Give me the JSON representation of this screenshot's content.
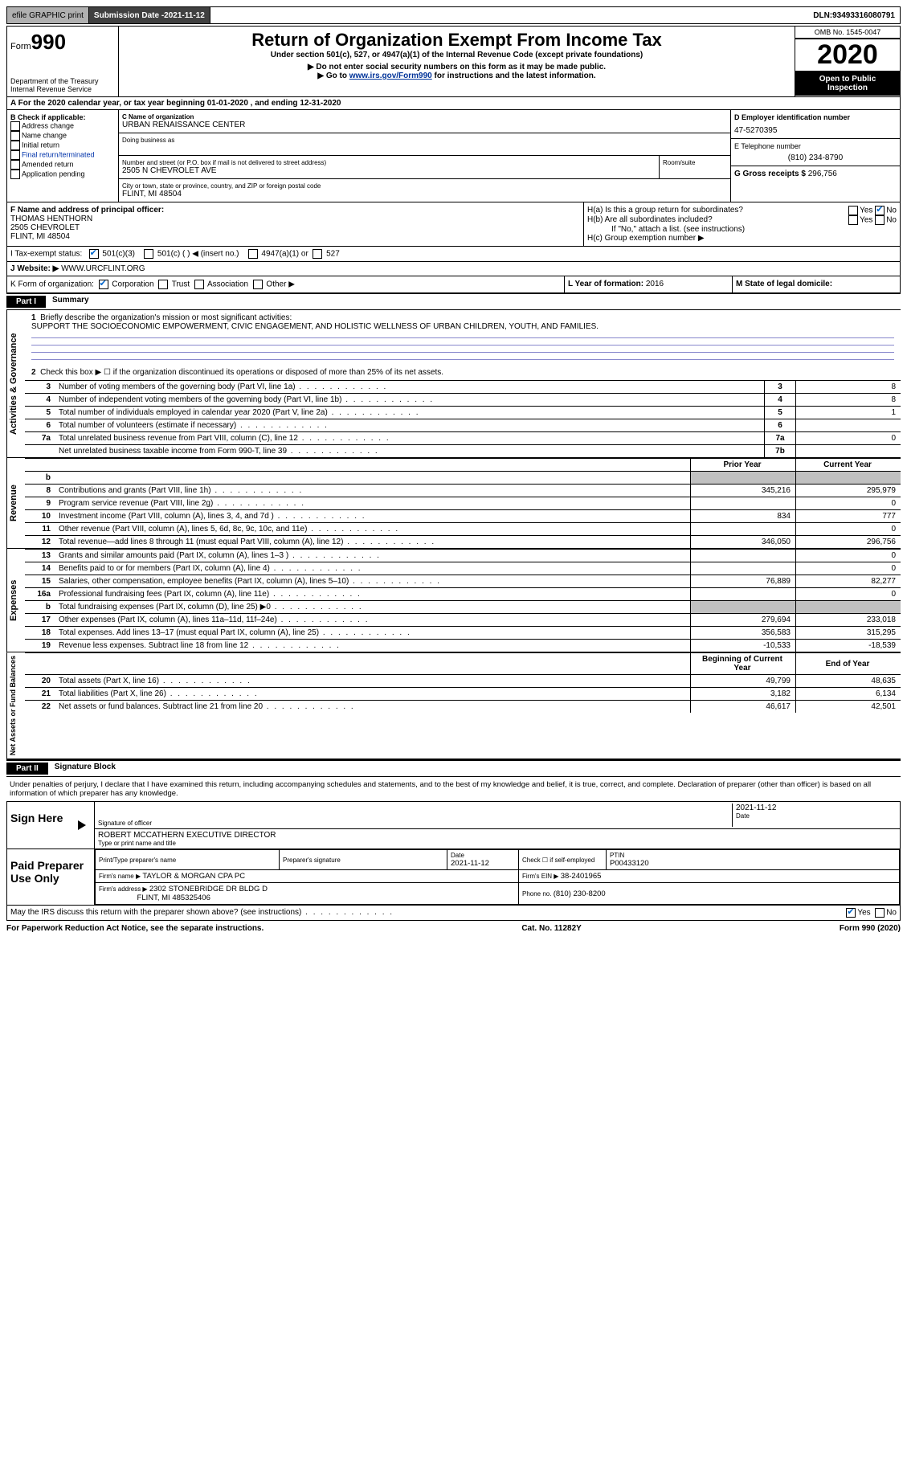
{
  "topbar": {
    "efile": "efile GRAPHIC print",
    "submission_label": "Submission Date - ",
    "submission_date": "2021-11-12",
    "dln_label": "DLN: ",
    "dln": "93493316080791"
  },
  "header": {
    "form_word": "Form",
    "form_number": "990",
    "dept": "Department of the Treasury\nInternal Revenue Service",
    "title": "Return of Organization Exempt From Income Tax",
    "subtitle": "Under section 501(c), 527, or 4947(a)(1) of the Internal Revenue Code (except private foundations)",
    "note1": "▶ Do not enter social security numbers on this form as it may be made public.",
    "note2_pre": "▶ Go to ",
    "note2_link": "www.irs.gov/Form990",
    "note2_post": " for instructions and the latest information.",
    "omb": "OMB No. 1545-0047",
    "year": "2020",
    "inspection": "Open to Public Inspection"
  },
  "period": {
    "text": "A For the 2020 calendar year, or tax year beginning 01-01-2020   , and ending 12-31-2020"
  },
  "section_b": {
    "header": "B Check if applicable:",
    "items": [
      "Address change",
      "Name change",
      "Initial return",
      "Final return/terminated",
      "Amended return",
      "Application pending"
    ]
  },
  "section_c": {
    "name_label": "C Name of organization",
    "name": "URBAN RENAISSANCE CENTER",
    "dba_label": "Doing business as",
    "addr_label": "Number and street (or P.O. box if mail is not delivered to street address)",
    "room_label": "Room/suite",
    "addr": "2505 N CHEVROLET AVE",
    "city_label": "City or town, state or province, country, and ZIP or foreign postal code",
    "city": "FLINT, MI  48504"
  },
  "section_d": {
    "ein_label": "D Employer identification number",
    "ein": "47-5270395",
    "phone_label": "E Telephone number",
    "phone": "(810) 234-8790",
    "gross_label": "G Gross receipts $ ",
    "gross": "296,756"
  },
  "section_f": {
    "label": "F Name and address of principal officer:",
    "name": "THOMAS HENTHORN",
    "addr1": "2505 CHEVROLET",
    "addr2": "FLINT, MI  48504"
  },
  "section_h": {
    "ha": "H(a)  Is this a group return for subordinates?",
    "hb": "H(b)  Are all subordinates included?",
    "hb_note": "If \"No,\" attach a list. (see instructions)",
    "hc": "H(c)  Group exemption number ▶",
    "yes": "Yes",
    "no": "No"
  },
  "section_i": {
    "label": "I   Tax-exempt status:",
    "opts": [
      "501(c)(3)",
      "501(c) (  ) ◀ (insert no.)",
      "4947(a)(1) or",
      "527"
    ]
  },
  "section_j": {
    "label": "J   Website: ▶",
    "value": "WWW.URCFLINT.ORG"
  },
  "section_k": {
    "label": "K Form of organization:",
    "opts": [
      "Corporation",
      "Trust",
      "Association",
      "Other ▶"
    ]
  },
  "section_l": {
    "label": "L Year of formation: ",
    "value": "2016"
  },
  "section_m": {
    "label": "M State of legal domicile:",
    "value": ""
  },
  "part1": {
    "tab": "Part I",
    "title": "Summary",
    "q1_label": "1",
    "q1": "Briefly describe the organization's mission or most significant activities:",
    "mission": "SUPPORT THE SOCIOECONOMIC EMPOWERMENT, CIVIC ENGAGEMENT, AND HOLISTIC WELLNESS OF URBAN CHILDREN, YOUTH, AND FAMILIES.",
    "q2_label": "2",
    "q2": "Check this box ▶ ☐  if the organization discontinued its operations or disposed of more than 25% of its net assets."
  },
  "governance_lines": [
    {
      "no": "3",
      "text": "Number of voting members of the governing body (Part VI, line 1a)",
      "box": "3",
      "val": "8"
    },
    {
      "no": "4",
      "text": "Number of independent voting members of the governing body (Part VI, line 1b)",
      "box": "4",
      "val": "8"
    },
    {
      "no": "5",
      "text": "Total number of individuals employed in calendar year 2020 (Part V, line 2a)",
      "box": "5",
      "val": "1"
    },
    {
      "no": "6",
      "text": "Total number of volunteers (estimate if necessary)",
      "box": "6",
      "val": ""
    },
    {
      "no": "7a",
      "text": "Total unrelated business revenue from Part VIII, column (C), line 12",
      "box": "7a",
      "val": "0"
    },
    {
      "no": "",
      "text": "Net unrelated business taxable income from Form 990-T, line 39",
      "box": "7b",
      "val": ""
    }
  ],
  "col_headers": {
    "prior": "Prior Year",
    "current": "Current Year"
  },
  "revenue_lines": [
    {
      "no": "b",
      "text": "",
      "py": "",
      "cy": "",
      "grey": true
    },
    {
      "no": "8",
      "text": "Contributions and grants (Part VIII, line 1h)",
      "py": "345,216",
      "cy": "295,979"
    },
    {
      "no": "9",
      "text": "Program service revenue (Part VIII, line 2g)",
      "py": "",
      "cy": "0"
    },
    {
      "no": "10",
      "text": "Investment income (Part VIII, column (A), lines 3, 4, and 7d )",
      "py": "834",
      "cy": "777"
    },
    {
      "no": "11",
      "text": "Other revenue (Part VIII, column (A), lines 5, 6d, 8c, 9c, 10c, and 11e)",
      "py": "",
      "cy": "0"
    },
    {
      "no": "12",
      "text": "Total revenue—add lines 8 through 11 (must equal Part VIII, column (A), line 12)",
      "py": "346,050",
      "cy": "296,756"
    }
  ],
  "expense_lines": [
    {
      "no": "13",
      "text": "Grants and similar amounts paid (Part IX, column (A), lines 1–3 )",
      "py": "",
      "cy": "0"
    },
    {
      "no": "14",
      "text": "Benefits paid to or for members (Part IX, column (A), line 4)",
      "py": "",
      "cy": "0"
    },
    {
      "no": "15",
      "text": "Salaries, other compensation, employee benefits (Part IX, column (A), lines 5–10)",
      "py": "76,889",
      "cy": "82,277"
    },
    {
      "no": "16a",
      "text": "Professional fundraising fees (Part IX, column (A), line 11e)",
      "py": "",
      "cy": "0"
    },
    {
      "no": "b",
      "text": "Total fundraising expenses (Part IX, column (D), line 25) ▶0",
      "py": "",
      "cy": "",
      "grey": true
    },
    {
      "no": "17",
      "text": "Other expenses (Part IX, column (A), lines 11a–11d, 11f–24e)",
      "py": "279,694",
      "cy": "233,018"
    },
    {
      "no": "18",
      "text": "Total expenses. Add lines 13–17 (must equal Part IX, column (A), line 25)",
      "py": "356,583",
      "cy": "315,295"
    },
    {
      "no": "19",
      "text": "Revenue less expenses. Subtract line 18 from line 12",
      "py": "-10,533",
      "cy": "-18,539"
    }
  ],
  "net_headers": {
    "begin": "Beginning of Current Year",
    "end": "End of Year"
  },
  "net_lines": [
    {
      "no": "20",
      "text": "Total assets (Part X, line 16)",
      "py": "49,799",
      "cy": "48,635"
    },
    {
      "no": "21",
      "text": "Total liabilities (Part X, line 26)",
      "py": "3,182",
      "cy": "6,134"
    },
    {
      "no": "22",
      "text": "Net assets or fund balances. Subtract line 21 from line 20",
      "py": "46,617",
      "cy": "42,501"
    }
  ],
  "part2": {
    "tab": "Part II",
    "title": "Signature Block",
    "declare": "Under penalties of perjury, I declare that I have examined this return, including accompanying schedules and statements, and to the best of my knowledge and belief, it is true, correct, and complete. Declaration of preparer (other than officer) is based on all information of which preparer has any knowledge."
  },
  "sign": {
    "label": "Sign Here",
    "sig_of_officer": "Signature of officer",
    "date_label": "Date",
    "date": "2021-11-12",
    "name": "ROBERT MCCATHERN  EXECUTIVE DIRECTOR",
    "type_label": "Type or print name and title"
  },
  "prep": {
    "label": "Paid Preparer Use Only",
    "h1": "Print/Type preparer's name",
    "h2": "Preparer's signature",
    "h3": "Date",
    "h3v": "2021-11-12",
    "h4": "Check ☐ if self-employed",
    "h5": "PTIN",
    "h5v": "P00433120",
    "firm_name_label": "Firm's name    ▶ ",
    "firm_name": "TAYLOR & MORGAN CPA PC",
    "firm_ein_label": "Firm's EIN ▶ ",
    "firm_ein": "38-2401965",
    "firm_addr_label": "Firm's address ▶ ",
    "firm_addr1": "2302 STONEBRIDGE DR BLDG D",
    "firm_addr2": "FLINT, MI  485325406",
    "phone_label": "Phone no. ",
    "phone": "(810) 230-8200"
  },
  "discuss": {
    "text": "May the IRS discuss this return with the preparer shown above? (see instructions)",
    "yes": "Yes",
    "no": "No"
  },
  "footer": {
    "left": "For Paperwork Reduction Act Notice, see the separate instructions.",
    "mid": "Cat. No. 11282Y",
    "right": "Form 990 (2020)"
  },
  "vtabs": {
    "gov": "Activities & Governance",
    "rev": "Revenue",
    "exp": "Expenses",
    "net": "Net Assets or Fund Balances"
  }
}
